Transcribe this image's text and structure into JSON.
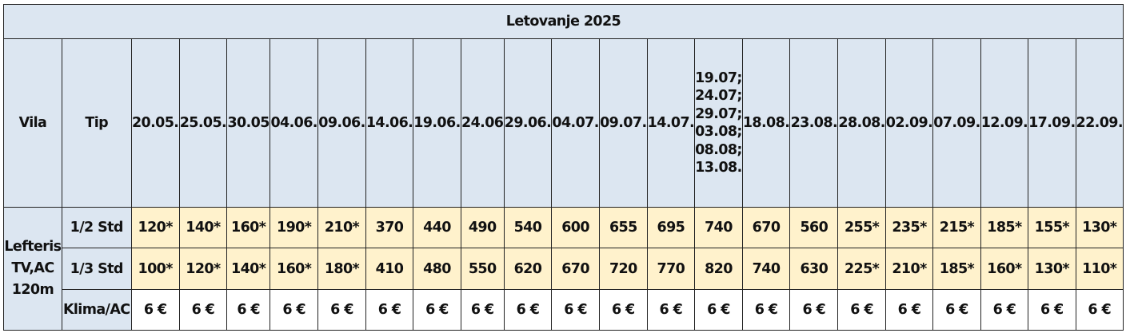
{
  "title": "Letovanje 2025",
  "headers": {
    "vila": "Vila",
    "tip": "Tip",
    "dates": [
      "20.05.",
      "25.05.",
      "30.05",
      "04.06.",
      "09.06.",
      "14.06.",
      "19.06.",
      "24.06",
      "29.06.",
      "04.07.",
      "09.07.",
      "14.07.",
      "19.07.; 24.07.; 29.07; 03.08; 08.08; 13.08.",
      "18.08.",
      "23.08.",
      "28.08.",
      "02.09.",
      "07.09.",
      "12.09.",
      "17.09.",
      "22.09."
    ],
    "date_multiline": [
      "19.07;",
      "24.07;",
      "29.07;",
      "03.08;",
      "08.08;",
      "13.08."
    ]
  },
  "vila": {
    "lines": [
      "Lefteris",
      "TV,AC",
      "120m"
    ]
  },
  "rows": [
    {
      "tip": "1/2 Std",
      "values": [
        "120*",
        "140*",
        "160*",
        "190*",
        "210*",
        "370",
        "440",
        "490",
        "540",
        "600",
        "655",
        "695",
        "740",
        "670",
        "560",
        "255*",
        "235*",
        "215*",
        "185*",
        "155*",
        "130*"
      ]
    },
    {
      "tip": "1/3 Std",
      "values": [
        "100*",
        "120*",
        "140*",
        "160*",
        "180*",
        "410",
        "480",
        "550",
        "620",
        "670",
        "720",
        "770",
        "820",
        "740",
        "630",
        "225*",
        "210*",
        "185*",
        "160*",
        "130*",
        "110*"
      ]
    },
    {
      "tip": "Klima/AC",
      "values": [
        "6 €",
        "6 €",
        "6 €",
        "6 €",
        "6 €",
        "6 €",
        "6 €",
        "6 €",
        "6 €",
        "6 €",
        "6 €",
        "6 €",
        "6 €",
        "6 €",
        "6 €",
        "6 €",
        "6 €",
        "6 €",
        "6 €",
        "6 €",
        "6 €"
      ]
    }
  ],
  "colors": {
    "header_bg": "#dce6f1",
    "price_bg": "#fff2cc",
    "border": "#222222"
  }
}
